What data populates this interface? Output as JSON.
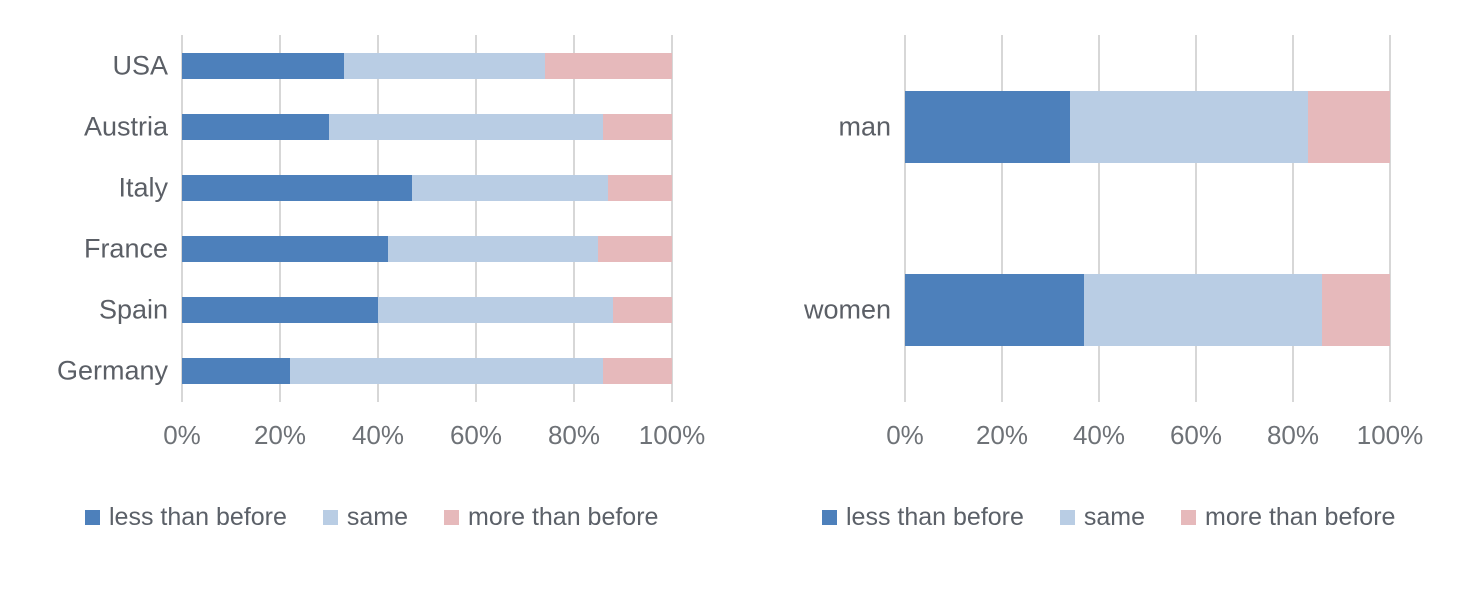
{
  "figure": {
    "background": "#ffffff",
    "text_color_labels": "#5b5f66",
    "text_color_ticks": "#6e7277",
    "gridline_color": "#d7d7d7"
  },
  "colors": {
    "less_than_before": "#4d80bb",
    "same": "#b9cde4",
    "more_than_before": "#e6b9bb"
  },
  "legend": {
    "items": [
      {
        "label": "less than before",
        "color": "#4d80bb"
      },
      {
        "label": "same",
        "color": "#b9cde4"
      },
      {
        "label": "more than before",
        "color": "#e6b9bb"
      }
    ]
  },
  "chart_data": [
    {
      "type": "bar",
      "orientation": "horizontal",
      "stacked": true,
      "title": "",
      "categories": [
        "USA",
        "Austria",
        "Italy",
        "France",
        "Spain",
        "Germany"
      ],
      "series": [
        {
          "name": "less than before",
          "color": "#4d80bb",
          "values": [
            33,
            30,
            47,
            42,
            40,
            22
          ]
        },
        {
          "name": "same",
          "color": "#b9cde4",
          "values": [
            41,
            56,
            40,
            43,
            48,
            64
          ]
        },
        {
          "name": "more than before",
          "color": "#e6b9bb",
          "values": [
            26,
            14,
            13,
            15,
            12,
            14
          ]
        }
      ],
      "x_ticks": [
        "0%",
        "20%",
        "40%",
        "60%",
        "80%",
        "100%"
      ],
      "xlim": [
        0,
        100
      ],
      "xlabel": "",
      "ylabel": "",
      "grid": true,
      "legend_position": "bottom"
    },
    {
      "type": "bar",
      "orientation": "horizontal",
      "stacked": true,
      "title": "",
      "categories": [
        "man",
        "women"
      ],
      "series": [
        {
          "name": "less than before",
          "color": "#4d80bb",
          "values": [
            34,
            37
          ]
        },
        {
          "name": "same",
          "color": "#b9cde4",
          "values": [
            49,
            49
          ]
        },
        {
          "name": "more than before",
          "color": "#e6b9bb",
          "values": [
            17,
            14
          ]
        }
      ],
      "x_ticks": [
        "0%",
        "20%",
        "40%",
        "60%",
        "80%",
        "100%"
      ],
      "xlim": [
        0,
        100
      ],
      "xlabel": "",
      "ylabel": "",
      "grid": true,
      "legend_position": "bottom"
    }
  ]
}
